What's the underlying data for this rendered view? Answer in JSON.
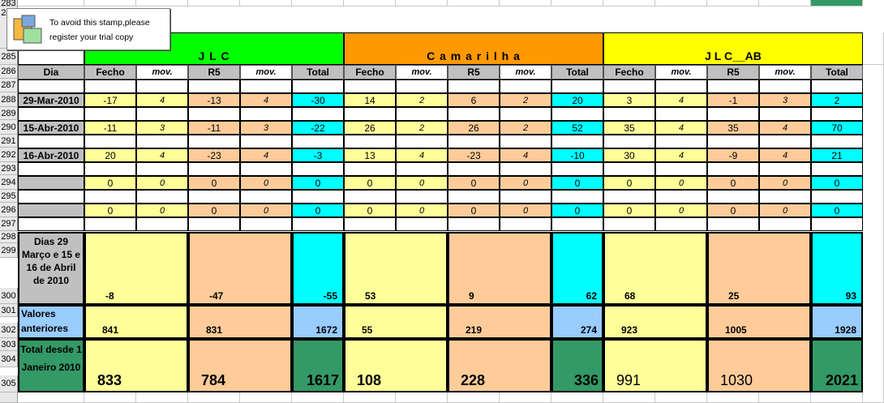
{
  "stamp": {
    "line1": "To avoid this stamp,please",
    "line2": "register your trial copy",
    "icon": "app-icon"
  },
  "colors": {
    "green": "#00ff00",
    "orange": "#ff9900",
    "yellow": "#ffff00",
    "lightyellow": "#ffff99",
    "peach": "#ffcc99",
    "cyan": "#00ffff",
    "blue": "#99ccff",
    "darkgreen": "#339966",
    "gray": "#c0c0c0"
  },
  "row_numbers": [
    "283",
    "284",
    "285",
    "286",
    "287",
    "288",
    "289",
    "290",
    "291",
    "292",
    "293",
    "294",
    "295",
    "296",
    "297",
    "298",
    "299",
    "300",
    "301",
    "302",
    "303",
    "304",
    "305"
  ],
  "groups": [
    "J L C",
    "C a m a r i l h a",
    "J L C__AB"
  ],
  "headers": [
    "Dia",
    "Fecho",
    "mov.",
    "R5",
    "mov.",
    "Total",
    "Fecho",
    "mov.",
    "R5",
    "mov.",
    "Total",
    "Fecho",
    "mov.",
    "R5",
    "mov.",
    "Total"
  ],
  "data_rows": [
    {
      "dia": "29-Mar-2010",
      "values": [
        "-17",
        "4",
        "-13",
        "4",
        "-30",
        "14",
        "2",
        "6",
        "2",
        "20",
        "3",
        "4",
        "-1",
        "3",
        "2"
      ]
    },
    {
      "dia": "15-Abr-2010",
      "values": [
        "-11",
        "3",
        "-11",
        "3",
        "-22",
        "26",
        "2",
        "26",
        "2",
        "52",
        "35",
        "4",
        "35",
        "4",
        "70"
      ]
    },
    {
      "dia": "16-Abr-2010",
      "values": [
        "20",
        "4",
        "-23",
        "4",
        "-3",
        "13",
        "4",
        "-23",
        "4",
        "-10",
        "30",
        "4",
        "-9",
        "4",
        "21"
      ]
    },
    {
      "dia": "",
      "values": [
        "0",
        "0",
        "0",
        "0",
        "0",
        "0",
        "0",
        "0",
        "0",
        "0",
        "0",
        "0",
        "0",
        "0",
        "0"
      ]
    },
    {
      "dia": "",
      "values": [
        "0",
        "0",
        "0",
        "0",
        "0",
        "0",
        "0",
        "0",
        "0",
        "0",
        "0",
        "0",
        "0",
        "0",
        "0"
      ]
    }
  ],
  "summary": {
    "dias_label": "Dias 29 Março e 15 e 16 de Abril de 2010",
    "dias_values": [
      "-8",
      "-47",
      "-55",
      "53",
      "9",
      "62",
      "68",
      "25",
      "93"
    ],
    "anteriores_label": "Valores anteriores",
    "anteriores_values": [
      "841",
      "831",
      "1672",
      "55",
      "219",
      "274",
      "923",
      "1005",
      "1928"
    ],
    "total_label": "Total desde 1 Janeiro 2010",
    "total_values": [
      "833",
      "784",
      "1617",
      "108",
      "228",
      "336",
      "991",
      "1030",
      "2021"
    ]
  }
}
